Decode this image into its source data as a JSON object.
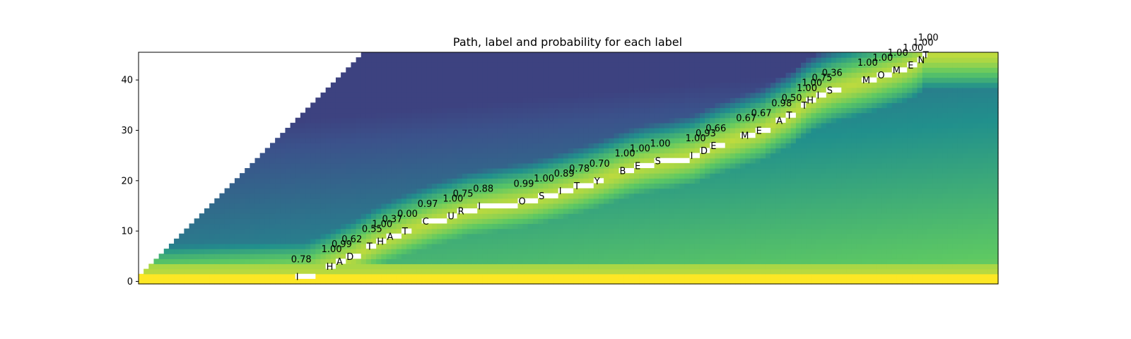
{
  "chart_data": {
    "type": "heatmap",
    "title": "Path, label and probability for each label",
    "xlabel": "",
    "ylabel": "",
    "xlim": [
      0,
      170
    ],
    "ylim": [
      -0.5,
      45.5
    ],
    "y_ticks": [
      0,
      10,
      20,
      30,
      40
    ],
    "x_ticks": [],
    "grid": false,
    "legend": "none",
    "colormap": [
      "#440154",
      "#3b528b",
      "#21908c",
      "#5dc863",
      "#fde725"
    ],
    "segments": [
      {
        "label": "I",
        "prob": "0.78",
        "row": 1,
        "x_start": 31,
        "x_end": 35
      },
      {
        "label": "H",
        "prob": "1.00",
        "row": 3,
        "x_start": 37,
        "x_end": 39
      },
      {
        "label": "A",
        "prob": "0.99",
        "row": 4,
        "x_start": 39,
        "x_end": 41
      },
      {
        "label": "D",
        "prob": "0.62",
        "row": 5,
        "x_start": 41,
        "x_end": 44
      },
      {
        "label": "T",
        "prob": "0.55",
        "row": 7,
        "x_start": 45,
        "x_end": 47
      },
      {
        "label": "H",
        "prob": "1.00",
        "row": 8,
        "x_start": 47,
        "x_end": 49
      },
      {
        "label": "A",
        "prob": "0.37",
        "row": 9,
        "x_start": 49,
        "x_end": 52
      },
      {
        "label": "T",
        "prob": "0.00",
        "row": 10,
        "x_start": 52,
        "x_end": 54
      },
      {
        "label": "C",
        "prob": "0.97",
        "row": 12,
        "x_start": 56,
        "x_end": 61
      },
      {
        "label": "U",
        "prob": "1.00",
        "row": 13,
        "x_start": 61,
        "x_end": 63
      },
      {
        "label": "R",
        "prob": "0.75",
        "row": 14,
        "x_start": 63,
        "x_end": 67
      },
      {
        "label": "I",
        "prob": "0.88",
        "row": 15,
        "x_start": 67,
        "x_end": 75
      },
      {
        "label": "O",
        "prob": "0.99",
        "row": 16,
        "x_start": 75,
        "x_end": 79
      },
      {
        "label": "S",
        "prob": "1.00",
        "row": 17,
        "x_start": 79,
        "x_end": 83
      },
      {
        "label": "I",
        "prob": "0.89",
        "row": 18,
        "x_start": 83,
        "x_end": 86
      },
      {
        "label": "T",
        "prob": "0.78",
        "row": 19,
        "x_start": 86,
        "x_end": 90
      },
      {
        "label": "Y",
        "prob": "0.70",
        "row": 20,
        "x_start": 90,
        "x_end": 92
      },
      {
        "label": "B",
        "prob": "1.00",
        "row": 22,
        "x_start": 95,
        "x_end": 98
      },
      {
        "label": "E",
        "prob": "1.00",
        "row": 23,
        "x_start": 98,
        "x_end": 102
      },
      {
        "label": "S",
        "prob": "1.00",
        "row": 24,
        "x_start": 102,
        "x_end": 109
      },
      {
        "label": "I",
        "prob": "1.00",
        "row": 25,
        "x_start": 109,
        "x_end": 111
      },
      {
        "label": "D",
        "prob": "0.93",
        "row": 26,
        "x_start": 111,
        "x_end": 113
      },
      {
        "label": "E",
        "prob": "0.66",
        "row": 27,
        "x_start": 113,
        "x_end": 116
      },
      {
        "label": "M",
        "prob": "0.67",
        "row": 29,
        "x_start": 119,
        "x_end": 122
      },
      {
        "label": "E",
        "prob": "0.67",
        "row": 30,
        "x_start": 122,
        "x_end": 125
      },
      {
        "label": "A",
        "prob": "0.98",
        "row": 32,
        "x_start": 126,
        "x_end": 128
      },
      {
        "label": "T",
        "prob": "0.50",
        "row": 33,
        "x_start": 128,
        "x_end": 130
      },
      {
        "label": "T",
        "prob": "1.00",
        "row": 35,
        "x_start": 131,
        "x_end": 132
      },
      {
        "label": "H",
        "prob": "1.00",
        "row": 36,
        "x_start": 132,
        "x_end": 134
      },
      {
        "label": "I",
        "prob": "0.75",
        "row": 37,
        "x_start": 134,
        "x_end": 136
      },
      {
        "label": "S",
        "prob": "0.36",
        "row": 38,
        "x_start": 136,
        "x_end": 139
      },
      {
        "label": "M",
        "prob": "1.00",
        "row": 40,
        "x_start": 143,
        "x_end": 146
      },
      {
        "label": "O",
        "prob": "1.00",
        "row": 41,
        "x_start": 146,
        "x_end": 149
      },
      {
        "label": "M",
        "prob": "1.00",
        "row": 42,
        "x_start": 149,
        "x_end": 152
      },
      {
        "label": "E",
        "prob": "1.00",
        "row": 43,
        "x_start": 152,
        "x_end": 154
      },
      {
        "label": "N",
        "prob": "1.00",
        "row": 44,
        "x_start": 154,
        "x_end": 155
      },
      {
        "label": "T",
        "prob": "1.00",
        "row": 45,
        "x_start": 155,
        "x_end": 156
      }
    ]
  }
}
